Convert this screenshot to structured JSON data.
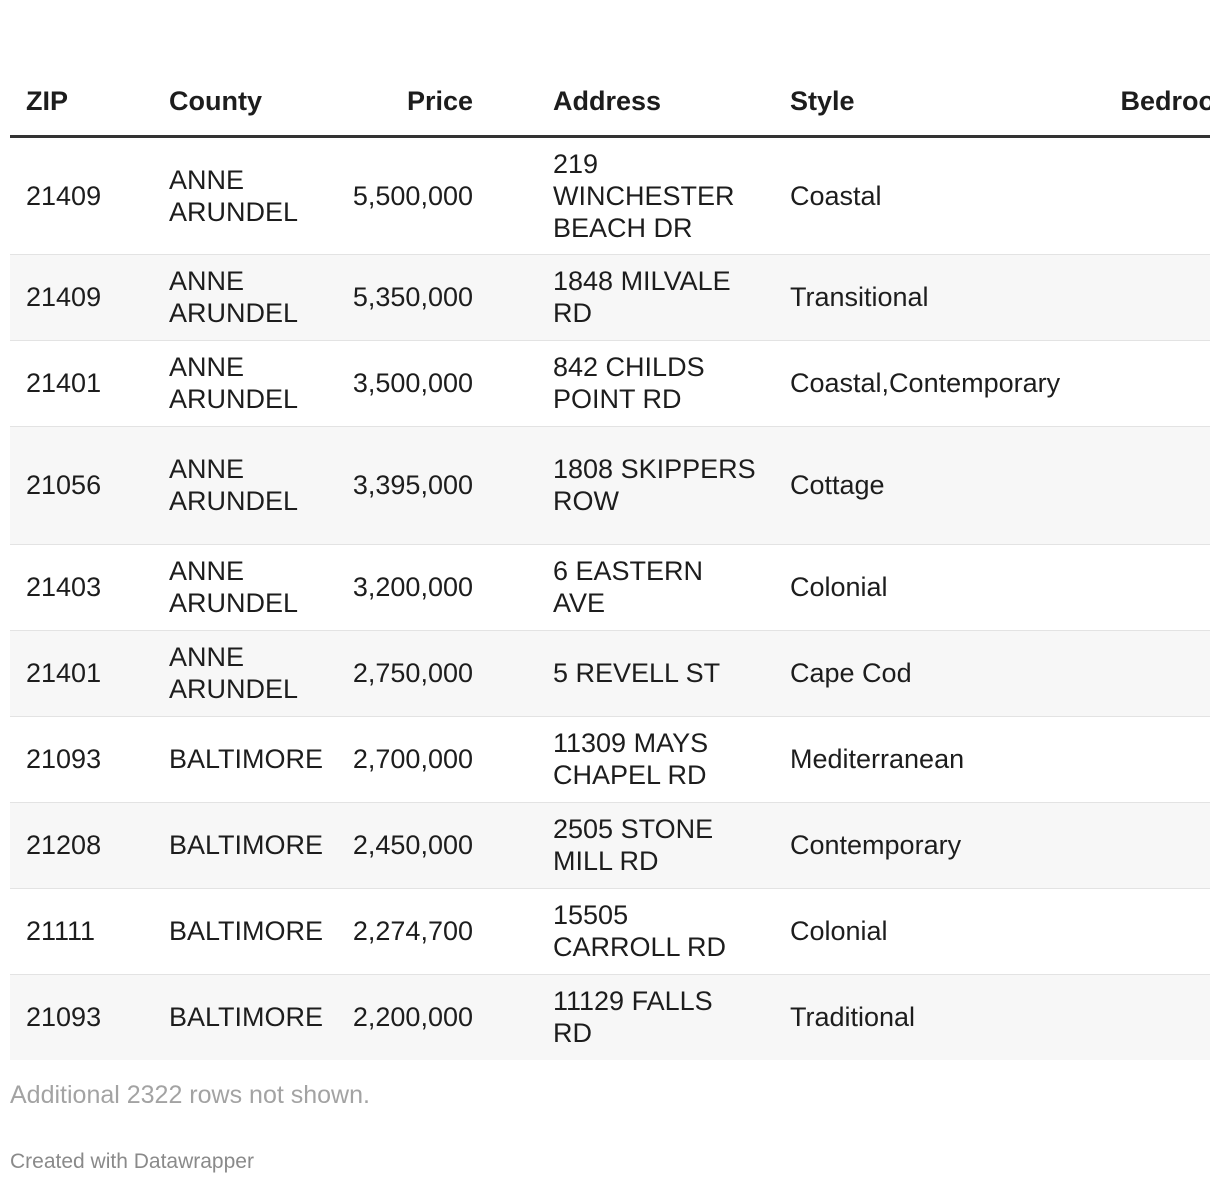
{
  "table": {
    "columns": [
      {
        "key": "zip",
        "label": "ZIP"
      },
      {
        "key": "county",
        "label": "County"
      },
      {
        "key": "price",
        "label": "Price"
      },
      {
        "key": "address",
        "label": "Address"
      },
      {
        "key": "style",
        "label": "Style"
      },
      {
        "key": "bedrooms",
        "label": "Bedrooms"
      }
    ],
    "rows": [
      {
        "zip": "21409",
        "county": "ANNE ARUNDEL",
        "price": "5,500,000",
        "address": "219 WINCHESTER BEACH DR",
        "style": "Coastal"
      },
      {
        "zip": "21409",
        "county": "ANNE ARUNDEL",
        "price": "5,350,000",
        "address": "1848 MILVALE RD",
        "style": "Transitional"
      },
      {
        "zip": "21401",
        "county": "ANNE ARUNDEL",
        "price": "3,500,000",
        "address": "842 CHILDS POINT RD",
        "style": "Coastal,Contemporary"
      },
      {
        "zip": "21056",
        "county": "ANNE ARUNDEL",
        "price": "3,395,000",
        "address": "1808 SKIPPERS ROW",
        "style": "Cottage"
      },
      {
        "zip": "21403",
        "county": "ANNE ARUNDEL",
        "price": "3,200,000",
        "address": "6 EASTERN AVE",
        "style": "Colonial"
      },
      {
        "zip": "21401",
        "county": "ANNE ARUNDEL",
        "price": "2,750,000",
        "address": "5 REVELL ST",
        "style": "Cape Cod"
      },
      {
        "zip": "21093",
        "county": "BALTIMORE",
        "price": "2,700,000",
        "address": "11309 MAYS CHAPEL RD",
        "style": "Mediterranean"
      },
      {
        "zip": "21208",
        "county": "BALTIMORE",
        "price": "2,450,000",
        "address": "2505 STONE MILL RD",
        "style": "Contemporary"
      },
      {
        "zip": "21111",
        "county": "BALTIMORE",
        "price": "2,274,700",
        "address": "15505 CARROLL RD",
        "style": "Colonial"
      },
      {
        "zip": "21093",
        "county": "BALTIMORE",
        "price": "2,200,000",
        "address": "11129 FALLS RD",
        "style": "Traditional"
      }
    ]
  },
  "footer": {
    "note": "Additional 2322 rows not shown.",
    "credit": "Created with Datawrapper"
  }
}
